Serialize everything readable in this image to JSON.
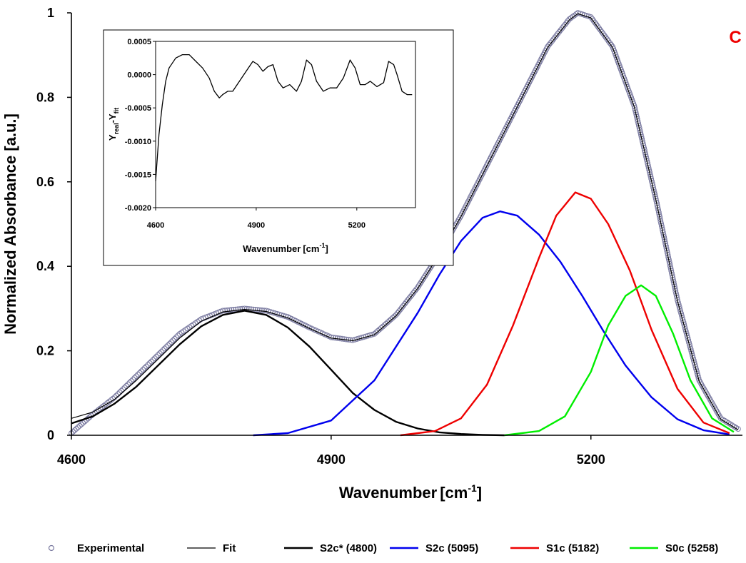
{
  "panel_label": "C",
  "chart_data": [
    {
      "id": "main",
      "type": "line",
      "xlabel_main": "Wavenumber",
      "xlabel_unit_pre": "[cm",
      "xlabel_unit_sup": "-1",
      "xlabel_unit_post": "]",
      "ylabel": "Normalized Absorbance [a.u.]",
      "xlim": [
        4600,
        5375
      ],
      "ylim": [
        0,
        1
      ],
      "x_ticks": [
        4600,
        4900,
        5200
      ],
      "x_tick_labels": [
        "4600",
        "4900",
        "5200"
      ],
      "y_ticks": [
        0,
        0.2,
        0.4,
        0.6,
        0.8,
        1
      ],
      "y_tick_labels": [
        "0",
        "0.2",
        "0.4",
        "0.6",
        "0.8",
        "1"
      ],
      "grid": false,
      "legend_position": "bottom",
      "legend": [
        {
          "label": "Experimental",
          "color": "#7a7aa0",
          "style": "circle"
        },
        {
          "label": "Fit",
          "color": "#000000",
          "style": "thin-line"
        },
        {
          "label": "S2c* (4800)",
          "color": "#000000",
          "style": "line"
        },
        {
          "label": "S2c (5095)",
          "color": "#0000ee",
          "style": "line"
        },
        {
          "label": "S1c (5182)",
          "color": "#ee0000",
          "style": "line"
        },
        {
          "label": "S0c (5258)",
          "color": "#00ee00",
          "style": "line"
        }
      ],
      "series": [
        {
          "name": "Experimental",
          "x": [
            4600,
            4625,
            4650,
            4675,
            4700,
            4725,
            4750,
            4775,
            4800,
            4825,
            4850,
            4875,
            4900,
            4925,
            4950,
            4975,
            5000,
            5025,
            5050,
            5075,
            5100,
            5125,
            5150,
            5175,
            5185,
            5200,
            5225,
            5250,
            5275,
            5300,
            5325,
            5350,
            5370
          ],
          "y": [
            0.005,
            0.05,
            0.09,
            0.14,
            0.19,
            0.24,
            0.275,
            0.295,
            0.3,
            0.295,
            0.28,
            0.255,
            0.232,
            0.225,
            0.24,
            0.285,
            0.35,
            0.43,
            0.52,
            0.62,
            0.72,
            0.82,
            0.92,
            0.985,
            1.0,
            0.99,
            0.92,
            0.78,
            0.56,
            0.32,
            0.13,
            0.04,
            0.015
          ]
        },
        {
          "name": "Fit",
          "x": [
            4600,
            4625,
            4650,
            4675,
            4700,
            4725,
            4750,
            4775,
            4800,
            4825,
            4850,
            4875,
            4900,
            4925,
            4950,
            4975,
            5000,
            5025,
            5050,
            5075,
            5100,
            5125,
            5150,
            5175,
            5185,
            5200,
            5225,
            5250,
            5275,
            5300,
            5325,
            5350,
            5370
          ],
          "y": [
            0.04,
            0.055,
            0.085,
            0.13,
            0.18,
            0.23,
            0.27,
            0.292,
            0.298,
            0.293,
            0.278,
            0.253,
            0.23,
            0.224,
            0.238,
            0.283,
            0.348,
            0.428,
            0.518,
            0.618,
            0.718,
            0.818,
            0.918,
            0.983,
            0.998,
            0.988,
            0.918,
            0.778,
            0.558,
            0.318,
            0.128,
            0.038,
            0.013
          ]
        },
        {
          "name": "S2c* (4800)",
          "x": [
            4600,
            4625,
            4650,
            4675,
            4700,
            4725,
            4750,
            4775,
            4800,
            4825,
            4850,
            4875,
            4900,
            4925,
            4950,
            4975,
            5000,
            5025,
            5050,
            5075,
            5100
          ],
          "y": [
            0.028,
            0.045,
            0.075,
            0.115,
            0.165,
            0.215,
            0.258,
            0.285,
            0.295,
            0.285,
            0.255,
            0.21,
            0.155,
            0.1,
            0.06,
            0.032,
            0.016,
            0.007,
            0.003,
            0.001,
            0.0
          ]
        },
        {
          "name": "S2c (5095)",
          "x": [
            4810,
            4850,
            4900,
            4950,
            5000,
            5025,
            5050,
            5075,
            5095,
            5115,
            5140,
            5165,
            5190,
            5215,
            5240,
            5270,
            5300,
            5330,
            5360
          ],
          "y": [
            0.0,
            0.005,
            0.035,
            0.13,
            0.29,
            0.38,
            0.46,
            0.515,
            0.53,
            0.52,
            0.475,
            0.41,
            0.33,
            0.245,
            0.165,
            0.09,
            0.038,
            0.012,
            0.002
          ]
        },
        {
          "name": "S1c (5182)",
          "x": [
            4980,
            5020,
            5050,
            5080,
            5110,
            5140,
            5160,
            5182,
            5200,
            5220,
            5245,
            5270,
            5300,
            5330,
            5360
          ],
          "y": [
            0.0,
            0.01,
            0.04,
            0.12,
            0.26,
            0.42,
            0.52,
            0.575,
            0.56,
            0.5,
            0.39,
            0.25,
            0.11,
            0.03,
            0.005
          ]
        },
        {
          "name": "S0c (5258)",
          "x": [
            5100,
            5140,
            5170,
            5200,
            5220,
            5240,
            5258,
            5275,
            5295,
            5315,
            5340,
            5365
          ],
          "y": [
            0.0,
            0.01,
            0.045,
            0.15,
            0.26,
            0.33,
            0.355,
            0.33,
            0.24,
            0.13,
            0.04,
            0.008
          ]
        }
      ]
    },
    {
      "id": "inset",
      "type": "line",
      "xlabel_main": "Wavenumber",
      "xlabel_unit_pre": "[cm",
      "xlabel_unit_sup": "-1",
      "xlabel_unit_post": "]",
      "ylabel_main": "Y",
      "ylabel_sub1": "real",
      "ylabel_mid": "-Y",
      "ylabel_sub2": "fit",
      "xlim": [
        4600,
        5375
      ],
      "ylim": [
        -0.002,
        0.0005
      ],
      "x_ticks": [
        4600,
        4900,
        5200
      ],
      "x_tick_labels": [
        "4600",
        "4900",
        "5200"
      ],
      "y_ticks": [
        0.0005,
        0.0,
        -0.0005,
        -0.001,
        -0.0015,
        -0.002
      ],
      "y_tick_labels": [
        "0.0005",
        "0.0000",
        "-0.0005",
        "-0.0010",
        "-0.0015",
        "-0.0020"
      ],
      "grid": false,
      "series": [
        {
          "name": "",
          "x": [
            4600,
            4610,
            4620,
            4630,
            4640,
            4660,
            4680,
            4700,
            4720,
            4740,
            4760,
            4775,
            4790,
            4800,
            4815,
            4830,
            4850,
            4870,
            4890,
            4905,
            4920,
            4935,
            4950,
            4965,
            4980,
            5000,
            5020,
            5035,
            5050,
            5065,
            5080,
            5100,
            5120,
            5140,
            5160,
            5180,
            5195,
            5210,
            5225,
            5240,
            5260,
            5280,
            5295,
            5310,
            5320,
            5335,
            5350,
            5365
          ],
          "y": [
            -0.0016,
            -0.0009,
            -0.00045,
            -0.0001,
            0.0001,
            0.00025,
            0.0003,
            0.0003,
            0.0002,
            0.0001,
            -5e-05,
            -0.00025,
            -0.00035,
            -0.0003,
            -0.00025,
            -0.00025,
            -0.0001,
            5e-05,
            0.0002,
            0.00015,
            5e-05,
            0.00012,
            0.00015,
            -0.0001,
            -0.0002,
            -0.00015,
            -0.00025,
            -0.0001,
            0.00022,
            0.00015,
            -0.0001,
            -0.00025,
            -0.0002,
            -0.0002,
            -5e-05,
            0.00022,
            0.0001,
            -0.00015,
            -0.00015,
            -0.0001,
            -0.00018,
            -0.00012,
            0.0002,
            0.00015,
            0.0,
            -0.00025,
            -0.0003,
            -0.0003
          ]
        }
      ]
    }
  ]
}
